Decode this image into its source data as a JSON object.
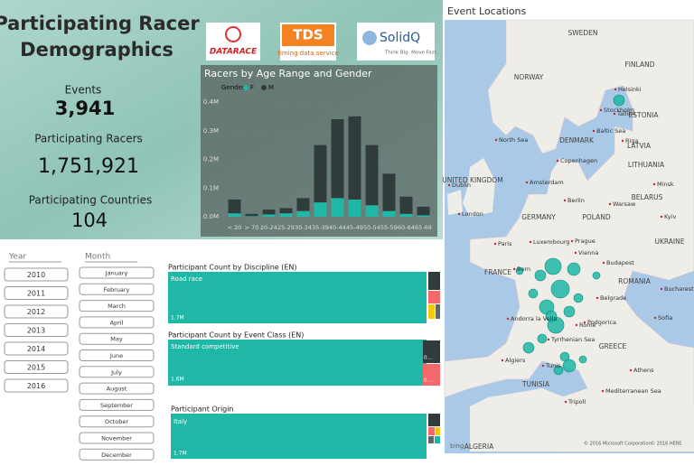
{
  "header": {
    "title": [
      "Participating Racer",
      "Demographics"
    ]
  },
  "kpis": [
    {
      "label": "Events",
      "value": "3,941"
    },
    {
      "label": "Participating Racers",
      "value": "1,751,921"
    },
    {
      "label": "Participating Countries",
      "value": "104"
    }
  ],
  "logos": [
    {
      "name": "DATARACE"
    },
    {
      "name": "TDS",
      "tagline": "timing data service"
    },
    {
      "name": "SolidQ",
      "tagline": "Think Big. Move Fast."
    }
  ],
  "chart_data": {
    "type": "bar",
    "stacked": true,
    "title": "Racers by Age Range and Gender",
    "legend_title": "Gender",
    "categories": [
      "< 20",
      "> 70",
      "20-24",
      "25-29",
      "30-34",
      "35-39",
      "40-44",
      "45-49",
      "50-54",
      "55-59",
      "60-64",
      "65-69"
    ],
    "series": [
      {
        "name": "F",
        "color": "#1fb7a6",
        "values": [
          0.012,
          0.002,
          0.008,
          0.012,
          0.02,
          0.05,
          0.065,
          0.06,
          0.04,
          0.02,
          0.01,
          0.005
        ]
      },
      {
        "name": "M",
        "color": "#2f3c3b",
        "values": [
          0.048,
          0.008,
          0.017,
          0.018,
          0.045,
          0.2,
          0.275,
          0.29,
          0.21,
          0.13,
          0.06,
          0.03
        ]
      }
    ],
    "ylim": [
      0,
      0.4
    ],
    "yticks": [
      {
        "value": 0,
        "label": "0.0M"
      },
      {
        "value": 0.1,
        "label": "0.1M"
      },
      {
        "value": 0.2,
        "label": "0.2M"
      },
      {
        "value": 0.3,
        "label": "0.3M"
      },
      {
        "value": 0.4,
        "label": "0.4M"
      }
    ]
  },
  "slicers": {
    "year": {
      "label": "Year",
      "items": [
        "2010",
        "2011",
        "2012",
        "2013",
        "2014",
        "2015",
        "2016"
      ]
    },
    "month": {
      "label": "Month",
      "items": [
        "January",
        "February",
        "March",
        "April",
        "May",
        "June",
        "July",
        "August",
        "September",
        "October",
        "November",
        "December"
      ]
    }
  },
  "treemaps": [
    {
      "title": "Participant Count by Discipline (EN)",
      "main_label": "Road race",
      "main_value": "1.7M"
    },
    {
      "title": "Participant Count by Event Class (EN)",
      "main_label": "Standard competitive",
      "main_value": "1.6M",
      "side_labels": [
        "0....",
        "0...."
      ]
    },
    {
      "title": "Participant Origin",
      "main_label": "Italy",
      "main_value": "1.7M"
    }
  ],
  "map": {
    "title": "Event Locations",
    "labels": [
      "SWEDEN",
      "FINLAND",
      "NORWAY",
      "Helsinki",
      "Stockholm",
      "Tallinn",
      "ESTONIA",
      "North Sea",
      "Baltic Sea",
      "LATVIA",
      "Riga",
      "DENMARK",
      "Copenhagen",
      "LITHUANIA",
      "UNITED KINGDOM",
      "Dublin",
      "Amsterdam",
      "Berlin",
      "Warsaw",
      "Minsk",
      "BELARUS",
      "London",
      "GERMANY",
      "POLAND",
      "Kyiv",
      "Paris",
      "Luxembourg",
      "Prague",
      "UKRAINE",
      "FRANCE",
      "Vienna",
      "Budapest",
      "Bern",
      "ROMANIA",
      "Bucharest",
      "Belgrade",
      "Sofia",
      "Andorra la Vella",
      "Podgorica",
      "Rome",
      "Tyrrhenian Sea",
      "GREECE",
      "Algiers",
      "Tunis",
      "Athens",
      "TUNISIA",
      "Mediterranean Sea",
      "Tripoli",
      "ALGERIA"
    ],
    "brand": "bing",
    "copyright": [
      "© 2016 Microsoft Corporation",
      "© 2016 HERE"
    ]
  }
}
